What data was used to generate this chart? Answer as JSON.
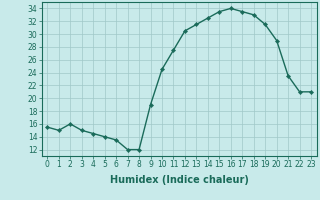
{
  "x": [
    0,
    1,
    2,
    3,
    4,
    5,
    6,
    7,
    8,
    9,
    10,
    11,
    12,
    13,
    14,
    15,
    16,
    17,
    18,
    19,
    20,
    21,
    22,
    23
  ],
  "y": [
    15.5,
    15.0,
    16.0,
    15.0,
    14.5,
    14.0,
    13.5,
    12.0,
    12.0,
    19.0,
    24.5,
    27.5,
    30.5,
    31.5,
    32.5,
    33.5,
    34.0,
    33.5,
    33.0,
    31.5,
    29.0,
    23.5,
    21.0,
    21.0
  ],
  "line_color": "#1a6b5a",
  "marker": "D",
  "marker_size": 2.2,
  "bg_color": "#c8eaea",
  "grid_color": "#a0c8c8",
  "xlabel": "Humidex (Indice chaleur)",
  "xlim": [
    -0.5,
    23.5
  ],
  "ylim": [
    11,
    35
  ],
  "yticks": [
    12,
    14,
    16,
    18,
    20,
    22,
    24,
    26,
    28,
    30,
    32,
    34
  ],
  "xticks": [
    0,
    1,
    2,
    3,
    4,
    5,
    6,
    7,
    8,
    9,
    10,
    11,
    12,
    13,
    14,
    15,
    16,
    17,
    18,
    19,
    20,
    21,
    22,
    23
  ],
  "xtick_labels": [
    "0",
    "1",
    "2",
    "3",
    "4",
    "5",
    "6",
    "7",
    "8",
    "9",
    "10",
    "11",
    "12",
    "13",
    "14",
    "15",
    "16",
    "17",
    "18",
    "19",
    "20",
    "21",
    "22",
    "23"
  ],
  "tick_fontsize": 5.5,
  "xlabel_fontsize": 7,
  "line_width": 1.0
}
